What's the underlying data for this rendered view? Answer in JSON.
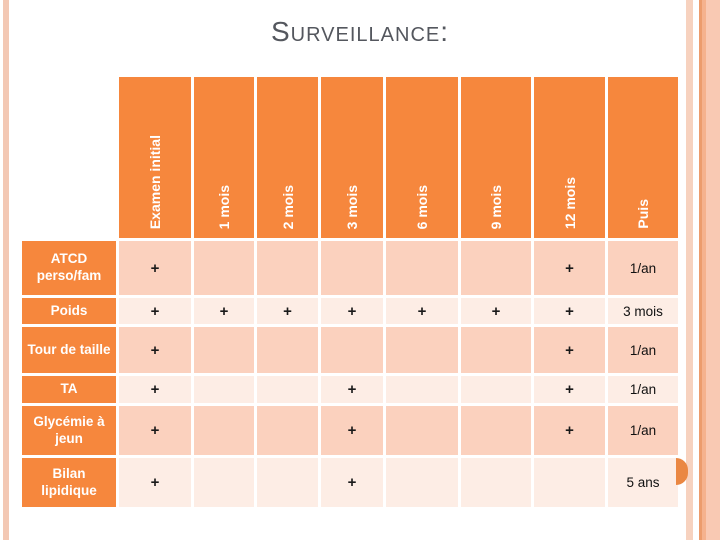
{
  "slide": {
    "title": "Surveillance:"
  },
  "table": {
    "columns": [
      "Examen initial",
      "1 mois",
      "2 mois",
      "3 mois",
      "6 mois",
      "9 mois",
      "12 mois",
      "Puis"
    ],
    "rows": [
      {
        "label": "ATCD perso/fam",
        "cells": [
          "+",
          "",
          "",
          "",
          "",
          "",
          "+",
          "1/an"
        ]
      },
      {
        "label": "Poids",
        "cells": [
          "+",
          "+",
          "+",
          "+",
          "+",
          "+",
          "+",
          "3 mois"
        ]
      },
      {
        "label": "Tour de taille",
        "cells": [
          "+",
          "",
          "",
          "",
          "",
          "",
          "+",
          "1/an"
        ]
      },
      {
        "label": "TA",
        "cells": [
          "+",
          "",
          "",
          "+",
          "",
          "",
          "+",
          "1/an"
        ]
      },
      {
        "label": "Glycémie à jeun",
        "cells": [
          "+",
          "",
          "",
          "+",
          "",
          "",
          "+",
          "1/an"
        ]
      },
      {
        "label": "Bilan lipidique",
        "cells": [
          "+",
          "",
          "",
          "+",
          "",
          "",
          "",
          "5 ans"
        ]
      }
    ]
  },
  "colors": {
    "header_orange": "#F6873D",
    "row_dark_pink": "#FBD1BE",
    "row_light_pink": "#FDEDE5",
    "title_gray": "#54575E",
    "accent_circle_orange": "#EA8742",
    "border_salmon": "#F3C8B4"
  }
}
